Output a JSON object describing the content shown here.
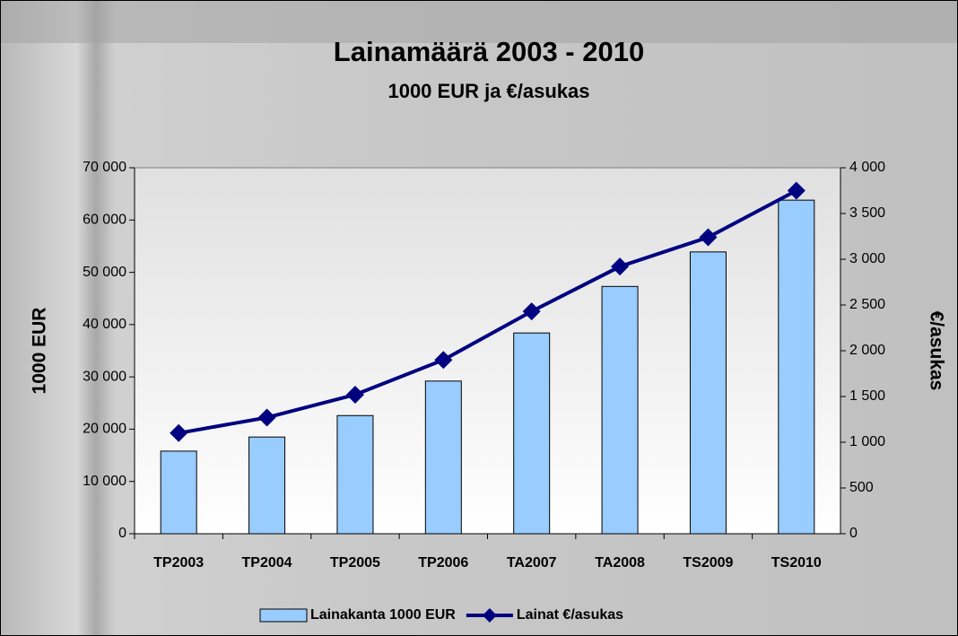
{
  "chart_data": {
    "type": "bar",
    "title": "Lainamäärä 2003 - 2010",
    "subtitle": "1000 EUR ja €/asukas",
    "y_label": "1000 EUR",
    "y2_label": "€/asukas",
    "categories": [
      "TP2003",
      "TP2004",
      "TP2005",
      "TP2006",
      "TA2007",
      "TA2008",
      "TS2009",
      "TS2010"
    ],
    "series": [
      {
        "name": "Lainakanta 1000 EUR",
        "type": "bar",
        "color": "#99ccff",
        "values": [
          15800,
          18500,
          22600,
          29200,
          38400,
          47300,
          53900,
          63800
        ]
      },
      {
        "name": "Lainat €/asukas",
        "type": "line",
        "axis": "y2",
        "color": "#000080",
        "values": [
          1100,
          1270,
          1520,
          1900,
          2430,
          2920,
          3240,
          3750
        ]
      }
    ],
    "ylim": [
      0,
      70000
    ],
    "yticks": [
      0,
      {
        "value": 10000,
        "label": "10 000"
      },
      {
        "value": 20000,
        "label": "20 000"
      },
      {
        "value": 30000,
        "label": "30 000"
      },
      {
        "value": 40000,
        "label": "40 000"
      },
      {
        "value": 50000,
        "label": "50 000"
      },
      {
        "value": 60000,
        "label": "60 000"
      },
      {
        "value": 70000,
        "label": "70 000"
      }
    ],
    "y2lim": [
      0,
      4000
    ],
    "y2ticks": [
      0,
      500,
      {
        "value": 1000,
        "label": "1 000"
      },
      {
        "value": 1500,
        "label": "1 500"
      },
      {
        "value": 2000,
        "label": "2 000"
      },
      {
        "value": 2500,
        "label": "2 500"
      },
      {
        "value": 3000,
        "label": "3 000"
      },
      {
        "value": 3500,
        "label": "3 500"
      },
      {
        "value": 4000,
        "label": "4 000"
      }
    ],
    "legend": "bottom"
  }
}
